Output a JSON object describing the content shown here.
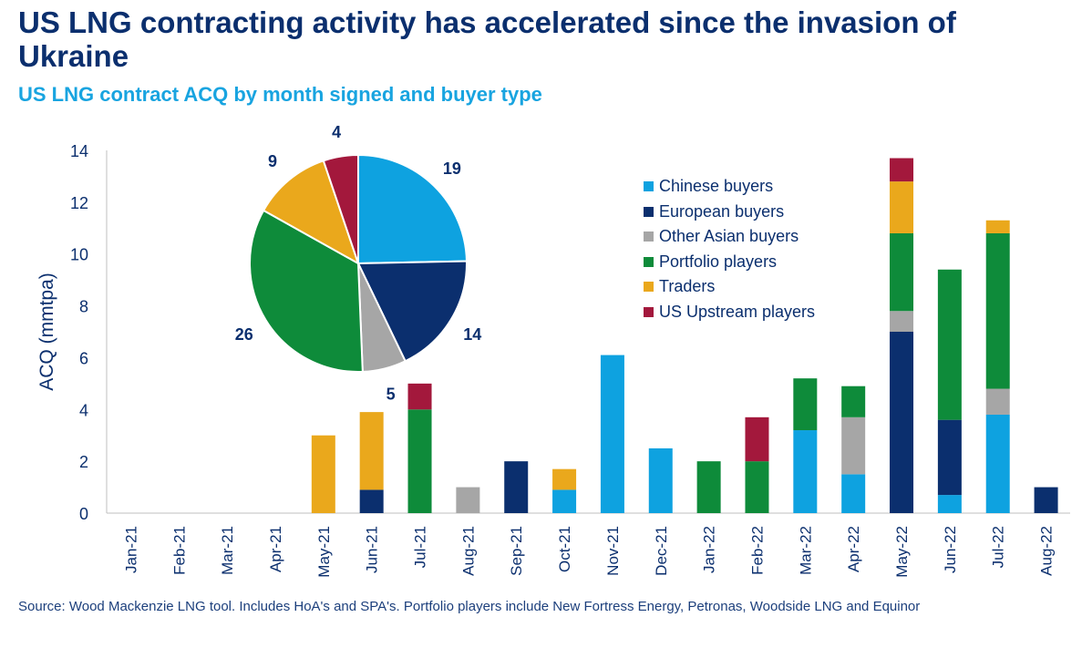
{
  "header": {
    "title": "US LNG contracting activity has accelerated since the invasion of Ukraine",
    "subtitle": "US LNG contract ACQ by month signed and buyer type"
  },
  "footer": {
    "source": "Source: Wood Mackenzie LNG tool. Includes HoA's and SPA's. Portfolio players include New Fortress Energy, Petronas, Woodside LNG and Equinor"
  },
  "chart_data": [
    {
      "type": "bar",
      "stacked": true,
      "ylabel": "ACQ (mmtpa)",
      "ylim": [
        0,
        14
      ],
      "yticks": [
        0,
        2,
        4,
        6,
        8,
        10,
        12,
        14
      ],
      "grid": false,
      "legend_position": "top-right",
      "categories": [
        "Jan-21",
        "Feb-21",
        "Mar-21",
        "Apr-21",
        "May-21",
        "Jun-21",
        "Jul-21",
        "Aug-21",
        "Sep-21",
        "Oct-21",
        "Nov-21",
        "Dec-21",
        "Jan-22",
        "Feb-22",
        "Mar-22",
        "Apr-22",
        "May-22",
        "Jun-22",
        "Jul-22",
        "Aug-22"
      ],
      "series": [
        {
          "name": "Chinese buyers",
          "color": "#0ea2e0",
          "values": [
            0,
            0,
            0,
            0,
            0,
            0,
            0,
            0,
            0,
            0.9,
            6.1,
            2.5,
            0,
            0,
            3.2,
            1.5,
            0,
            0.7,
            3.8,
            0
          ]
        },
        {
          "name": "European buyers",
          "color": "#0b2f6e",
          "values": [
            0,
            0,
            0,
            0,
            0,
            0.9,
            0,
            0,
            2.0,
            0,
            0,
            0,
            0,
            0,
            0,
            0,
            7.0,
            2.9,
            0,
            1.0
          ]
        },
        {
          "name": "Other Asian buyers",
          "color": "#a6a6a6",
          "values": [
            0,
            0,
            0,
            0,
            0,
            0,
            0,
            1.0,
            0,
            0,
            0,
            0,
            0,
            0,
            0,
            2.2,
            0.8,
            0,
            1.0,
            0
          ]
        },
        {
          "name": "Portfolio players",
          "color": "#0e8b3a",
          "values": [
            0,
            0,
            0,
            0,
            0,
            0,
            4.0,
            0,
            0,
            0,
            0,
            0,
            2.0,
            2.0,
            2.0,
            1.2,
            3.0,
            5.8,
            6.0,
            0
          ]
        },
        {
          "name": "Traders",
          "color": "#eaa81c",
          "values": [
            0,
            0,
            0,
            0,
            3.0,
            3.0,
            0,
            0,
            0,
            0.8,
            0,
            0,
            0,
            0,
            0,
            0,
            2.0,
            0,
            0.5,
            0
          ]
        },
        {
          "name": "US Upstream players",
          "color": "#a3183c",
          "values": [
            0,
            0,
            0,
            0,
            0,
            0,
            1.0,
            0,
            0,
            0,
            0,
            0,
            0,
            1.7,
            0,
            0,
            0.9,
            0,
            0,
            0
          ]
        }
      ]
    },
    {
      "type": "pie",
      "slices": [
        {
          "name": "Chinese buyers",
          "value": 19,
          "color": "#0ea2e0"
        },
        {
          "name": "European buyers",
          "value": 14,
          "color": "#0b2f6e"
        },
        {
          "name": "Other Asian buyers",
          "value": 5,
          "color": "#a6a6a6"
        },
        {
          "name": "Portfolio players",
          "value": 26,
          "color": "#0e8b3a"
        },
        {
          "name": "Traders",
          "value": 9,
          "color": "#eaa81c"
        },
        {
          "name": "US Upstream players",
          "value": 4,
          "color": "#a3183c"
        }
      ]
    }
  ]
}
